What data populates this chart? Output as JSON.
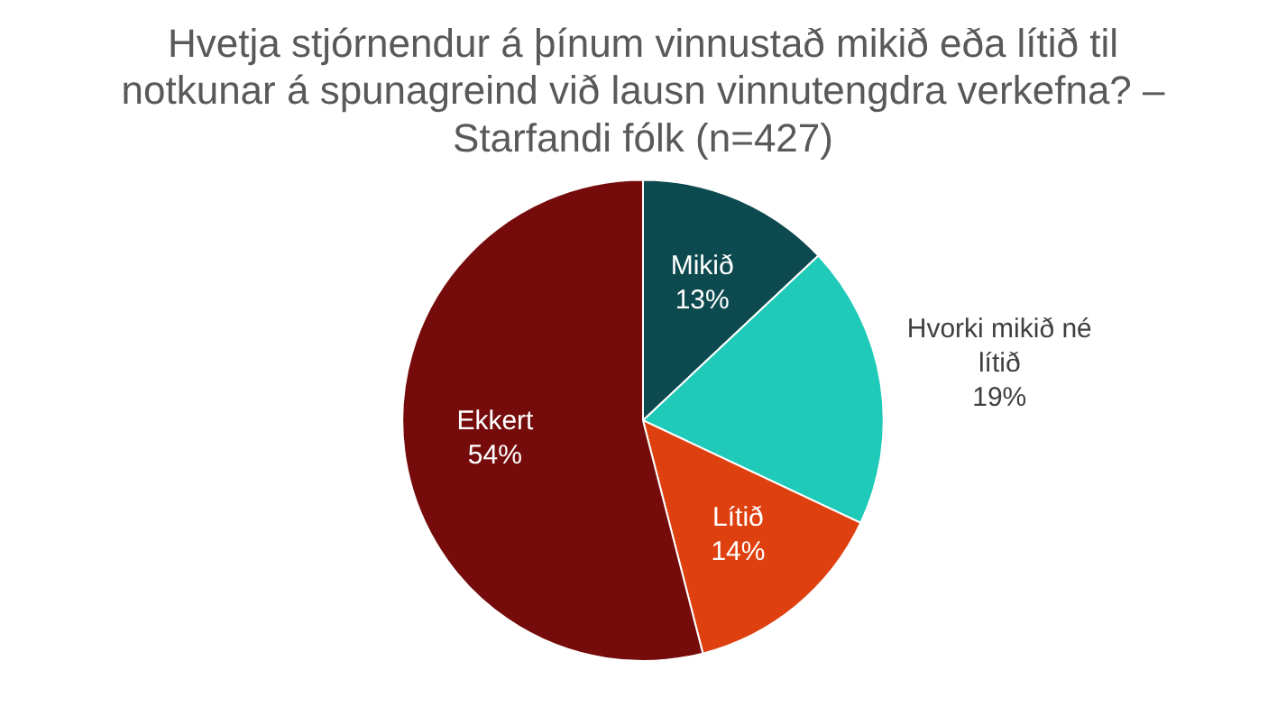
{
  "chart_data": {
    "type": "pie",
    "title": "Hvetja stjórnendur á þínum vinnustað mikið eða lítið til notkunar á spunagreind við lausn vinnutengdra verkefna? – Starfandi fólk (n=427)",
    "categories": [
      "Mikið",
      "Hvorki mikið né lítið",
      "Lítið",
      "Ekkert"
    ],
    "values": [
      13,
      19,
      14,
      54
    ],
    "value_labels": [
      "13%",
      "19%",
      "14%",
      "54%"
    ],
    "colors": [
      "#0d4a4f",
      "#1fcab8",
      "#df400f",
      "#760b0b"
    ],
    "legend": false
  }
}
